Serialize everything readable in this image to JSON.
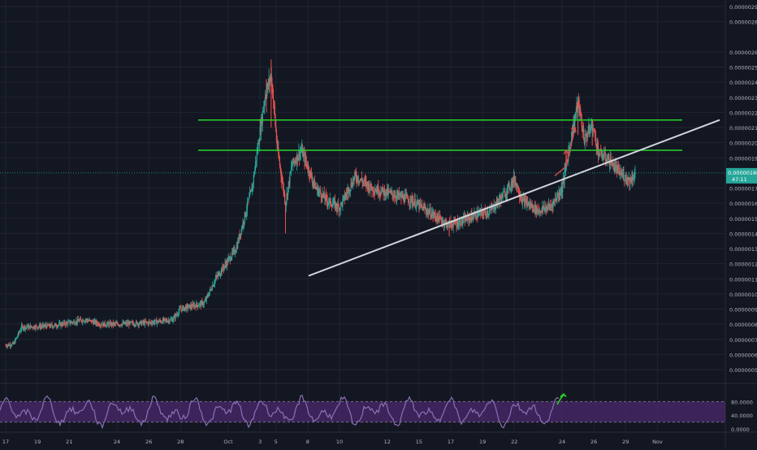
{
  "colors": {
    "background": "#131722",
    "grid": "#1f2430",
    "axis_text": "#b2b5be",
    "bull": "#26a69a",
    "bear": "#ef5350",
    "resistance": "#2bd62b",
    "trendline": "#d1d4dc",
    "projection": "#e24b4b",
    "price_tag_bg": "#26a69a",
    "osc_band": "#4b2a6e",
    "osc_line": "#8c6fb5",
    "osc_arrow": "#2bd62b"
  },
  "chart_data": [
    {
      "type": "candlestick",
      "ylim": [
        4.6e-07,
        2.95e-06
      ],
      "y_ticks": [
        "0.00000290",
        "0.00000280",
        "0.00000260",
        "0.00000250",
        "0.00000240",
        "0.00000230",
        "0.00000220",
        "0.00000210",
        "0.00000200",
        "0.00000190",
        "0.00000170",
        "0.00000160",
        "0.00000150",
        "0.00000140",
        "0.00000130",
        "0.00000120",
        "0.00000110",
        "0.00000100",
        "0.00000090",
        "0.00000080",
        "0.00000070",
        "0.00000060",
        "0.00000050"
      ],
      "x_ticks": [
        "17",
        "19",
        "21",
        "24",
        "26",
        "28",
        "Oct",
        "3",
        "5",
        "8",
        "10",
        "12",
        "15",
        "17",
        "19",
        "22",
        "24",
        "26",
        "29",
        "Nov"
      ],
      "current_price": {
        "label": "0.00000180",
        "countdown": "47:11",
        "value": 1.8e-06
      },
      "horizontal_lines": [
        2.15e-06,
        1.95e-06
      ],
      "trendline": {
        "from_x": "Oct 5",
        "from_y": 1.12e-06,
        "to_x": "Oct 30",
        "to_y": 2.15e-06
      },
      "series": [
        {
          "x_from": "Sep 16",
          "x_to": "Sep 22",
          "y_start": 6.6e-07,
          "y_end": 7.8e-07
        },
        {
          "x_from": "Sep 22",
          "x_to": "Sep 27",
          "y_start": 7.8e-07,
          "y_end": 9.2e-07
        },
        {
          "x_from": "Sep 27",
          "x_to": "Oct 1",
          "y_start": 9.2e-07,
          "y_end": 2.55e-06
        },
        {
          "x_from": "Oct 1",
          "x_to": "Oct 12",
          "y_start": 2e-06,
          "y_end": 1.4e-06
        },
        {
          "x_from": "Oct 12",
          "x_to": "Oct 17",
          "y_start": 1.4e-06,
          "y_end": 1.55e-06
        },
        {
          "x_from": "Oct 17",
          "x_to": "Oct 21",
          "y_start": 2.27e-06,
          "y_end": 1.8e-06
        }
      ],
      "projection_points": [
        {
          "x": "Oct 21",
          "y": 1.78e-06
        },
        {
          "x": "Oct 21",
          "y": 1.95e-06
        },
        {
          "x": "Oct 22",
          "y": 2.1e-06
        }
      ]
    },
    {
      "type": "line",
      "ylim": [
        0,
        100
      ],
      "y_ticks": [
        "80.0000",
        "40.0000",
        "0.0000"
      ],
      "band": [
        20,
        80
      ]
    }
  ]
}
